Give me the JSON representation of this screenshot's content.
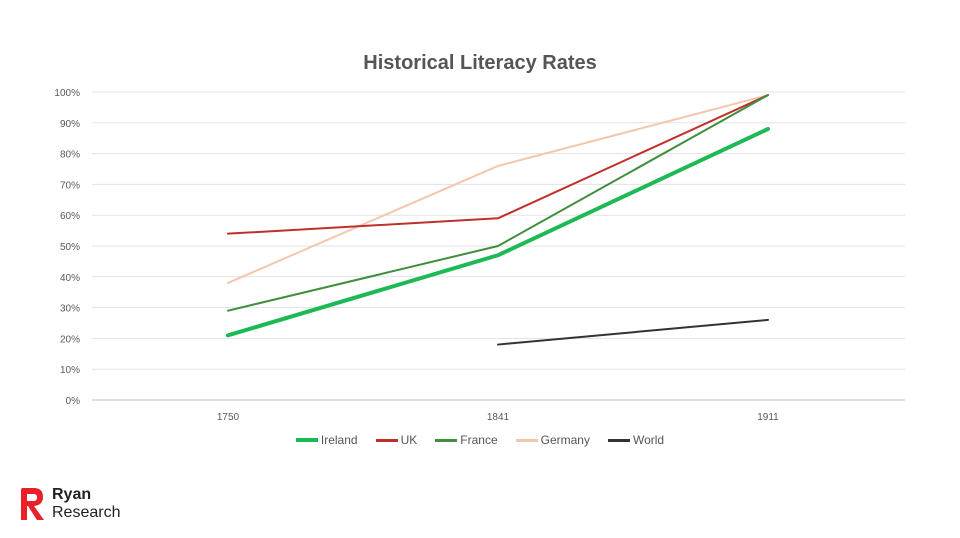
{
  "chart_data": {
    "type": "line",
    "title": "Historical Literacy Rates",
    "categories": [
      "1750",
      "1841",
      "1911"
    ],
    "y_ticks": [
      "0%",
      "10%",
      "20%",
      "30%",
      "40%",
      "50%",
      "60%",
      "70%",
      "80%",
      "90%",
      "100%"
    ],
    "ylim": [
      0,
      100
    ],
    "grid": true,
    "legend_position": "bottom",
    "series": [
      {
        "name": "Ireland",
        "values": [
          21,
          47,
          88
        ],
        "color": "#1DB954"
      },
      {
        "name": "UK",
        "values": [
          54,
          59,
          99
        ],
        "color": "#C0302B"
      },
      {
        "name": "France",
        "values": [
          29,
          50,
          99
        ],
        "color": "#3E8E3E"
      },
      {
        "name": "Germany",
        "values": [
          38,
          76,
          99
        ],
        "color": "#F4C6AE"
      },
      {
        "name": "World",
        "values": [
          null,
          18,
          26
        ],
        "color": "#333333"
      }
    ]
  },
  "brand": {
    "line1": "Ryan",
    "line2": "Research",
    "logo_color": "#E8202A"
  }
}
